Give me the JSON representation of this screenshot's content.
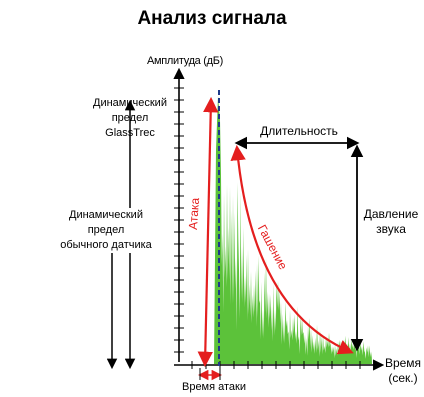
{
  "title": "Анализ сигнала",
  "labels": {
    "y_axis": "Амплитуда (дБ)",
    "x_axis_line1": "Время",
    "x_axis_line2": "(сек.)",
    "glasstrec_line1": "Динамический",
    "glasstrec_line2": "предел",
    "glasstrec_line3": "GlassTrec",
    "sensor_line1": "Динамический",
    "sensor_line2": "предел",
    "sensor_line3": "обычного датчика",
    "duration": "Длительность",
    "pressure_line1": "Давление",
    "pressure_line2": "звука",
    "attack": "Атака",
    "decay": "Гашение",
    "attack_time": "Время атаки"
  },
  "colors": {
    "signal_fill": "#5cc23a",
    "annotation_red": "#e41e1e",
    "marker_blue": "#1f3a8a",
    "axis": "#000000"
  }
}
